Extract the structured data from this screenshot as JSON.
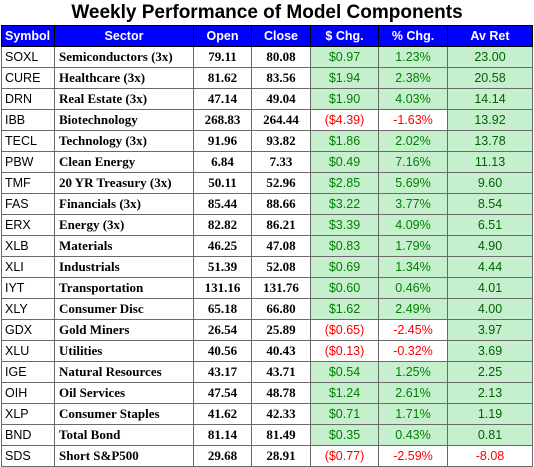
{
  "title": "Weekly Performance of Model Components",
  "headers": [
    "Symbol",
    "Sector",
    "Open",
    "Close",
    "$ Chg.",
    "% Chg.",
    "Av Ret"
  ],
  "rows": [
    {
      "symbol": "SOXL",
      "sector": "Semiconductors (3x)",
      "open": "79.11",
      "close": "80.08",
      "chg": "$0.97",
      "pct": "1.23%",
      "av": "23.00",
      "dir": "pos",
      "avdir": "pos"
    },
    {
      "symbol": "CURE",
      "sector": "Healthcare (3x)",
      "open": "81.62",
      "close": "83.56",
      "chg": "$1.94",
      "pct": "2.38%",
      "av": "20.58",
      "dir": "pos",
      "avdir": "pos"
    },
    {
      "symbol": "DRN",
      "sector": "Real Estate (3x)",
      "open": "47.14",
      "close": "49.04",
      "chg": "$1.90",
      "pct": "4.03%",
      "av": "14.14",
      "dir": "pos",
      "avdir": "pos"
    },
    {
      "symbol": "IBB",
      "sector": "Biotechnology",
      "open": "268.83",
      "close": "264.44",
      "chg": "($4.39)",
      "pct": "-1.63%",
      "av": "13.92",
      "dir": "neg",
      "avdir": "pos"
    },
    {
      "symbol": "TECL",
      "sector": "Technology (3x)",
      "open": "91.96",
      "close": "93.82",
      "chg": "$1.86",
      "pct": "2.02%",
      "av": "13.78",
      "dir": "pos",
      "avdir": "pos"
    },
    {
      "symbol": "PBW",
      "sector": "Clean Energy",
      "open": "6.84",
      "close": "7.33",
      "chg": "$0.49",
      "pct": "7.16%",
      "av": "11.13",
      "dir": "pos",
      "avdir": "pos"
    },
    {
      "symbol": "TMF",
      "sector": "20 YR Treasury (3x)",
      "open": "50.11",
      "close": "52.96",
      "chg": "$2.85",
      "pct": "5.69%",
      "av": "9.60",
      "dir": "pos",
      "avdir": "pos"
    },
    {
      "symbol": "FAS",
      "sector": "Financials (3x)",
      "open": "85.44",
      "close": "88.66",
      "chg": "$3.22",
      "pct": "3.77%",
      "av": "8.54",
      "dir": "pos",
      "avdir": "pos"
    },
    {
      "symbol": "ERX",
      "sector": "Energy (3x)",
      "open": "82.82",
      "close": "86.21",
      "chg": "$3.39",
      "pct": "4.09%",
      "av": "6.51",
      "dir": "pos",
      "avdir": "pos"
    },
    {
      "symbol": "XLB",
      "sector": "Materials",
      "open": "46.25",
      "close": "47.08",
      "chg": "$0.83",
      "pct": "1.79%",
      "av": "4.90",
      "dir": "pos",
      "avdir": "pos"
    },
    {
      "symbol": "XLI",
      "sector": "Industrials",
      "open": "51.39",
      "close": "52.08",
      "chg": "$0.69",
      "pct": "1.34%",
      "av": "4.44",
      "dir": "pos",
      "avdir": "pos"
    },
    {
      "symbol": "IYT",
      "sector": "Transportation",
      "open": "131.16",
      "close": "131.76",
      "chg": "$0.60",
      "pct": "0.46%",
      "av": "4.01",
      "dir": "pos",
      "avdir": "pos"
    },
    {
      "symbol": "XLY",
      "sector": "Consumer Disc",
      "open": "65.18",
      "close": "66.80",
      "chg": "$1.62",
      "pct": "2.49%",
      "av": "4.00",
      "dir": "pos",
      "avdir": "pos"
    },
    {
      "symbol": "GDX",
      "sector": "Gold Miners",
      "open": "26.54",
      "close": "25.89",
      "chg": "($0.65)",
      "pct": "-2.45%",
      "av": "3.97",
      "dir": "neg",
      "avdir": "pos"
    },
    {
      "symbol": "XLU",
      "sector": "Utilities",
      "open": "40.56",
      "close": "40.43",
      "chg": "($0.13)",
      "pct": "-0.32%",
      "av": "3.69",
      "dir": "neg",
      "avdir": "pos"
    },
    {
      "symbol": "IGE",
      "sector": "Natural Resources",
      "open": "43.17",
      "close": "43.71",
      "chg": "$0.54",
      "pct": "1.25%",
      "av": "2.25",
      "dir": "pos",
      "avdir": "pos"
    },
    {
      "symbol": "OIH",
      "sector": "Oil Services",
      "open": "47.54",
      "close": "48.78",
      "chg": "$1.24",
      "pct": "2.61%",
      "av": "2.13",
      "dir": "pos",
      "avdir": "pos"
    },
    {
      "symbol": "XLP",
      "sector": "Consumer Staples",
      "open": "41.62",
      "close": "42.33",
      "chg": "$0.71",
      "pct": "1.71%",
      "av": "1.19",
      "dir": "pos",
      "avdir": "pos"
    },
    {
      "symbol": "BND",
      "sector": "Total Bond",
      "open": "81.14",
      "close": "81.49",
      "chg": "$0.35",
      "pct": "0.43%",
      "av": "0.81",
      "dir": "pos",
      "avdir": "pos"
    },
    {
      "symbol": "SDS",
      "sector": "Short S&P500",
      "open": "29.68",
      "close": "28.91",
      "chg": "($0.77)",
      "pct": "-2.59%",
      "av": "-8.08",
      "dir": "neg",
      "avdir": "neg"
    }
  ],
  "colors": {
    "header_bg": "#0000ff",
    "header_text": "#ffffff",
    "positive_bg": "#c6efce",
    "positive_text": "#008000",
    "negative_text": "#ff0000"
  }
}
